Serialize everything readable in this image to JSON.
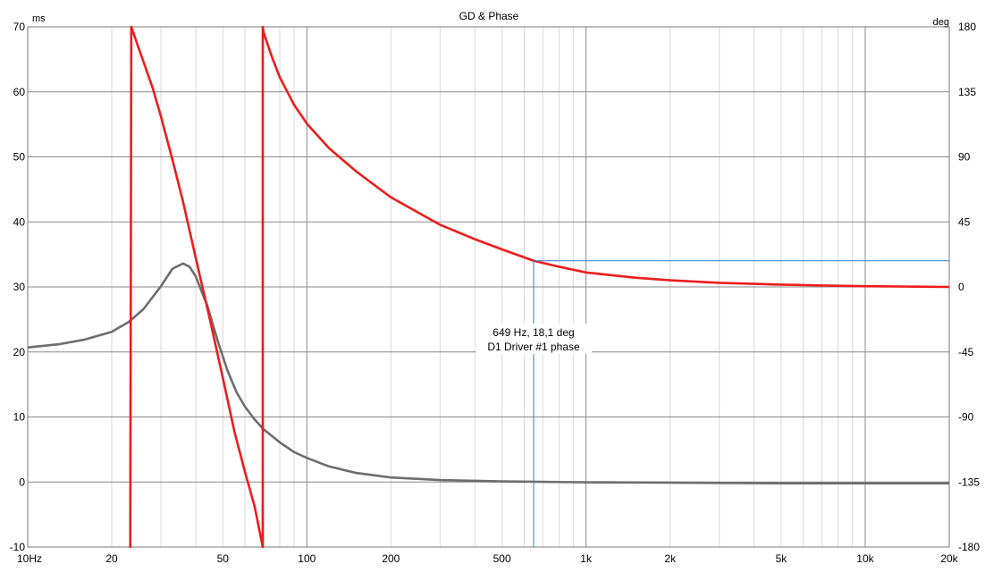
{
  "chart_data": {
    "type": "line",
    "title": "GD & Phase",
    "x_scale": "log",
    "xlim": [
      10,
      20000
    ],
    "x_ticks": [
      {
        "value": 10,
        "label": "10Hz"
      },
      {
        "value": 20,
        "label": "20"
      },
      {
        "value": 50,
        "label": "50"
      },
      {
        "value": 100,
        "label": "100"
      },
      {
        "value": 200,
        "label": "200"
      },
      {
        "value": 500,
        "label": "500"
      },
      {
        "value": 1000,
        "label": "1k"
      },
      {
        "value": 2000,
        "label": "2k"
      },
      {
        "value": 5000,
        "label": "5k"
      },
      {
        "value": 10000,
        "label": "10k"
      },
      {
        "value": 20000,
        "label": "20k"
      }
    ],
    "y_left": {
      "unit": "ms",
      "ylim": [
        -10,
        70
      ],
      "ticks": [
        70,
        60,
        50,
        40,
        30,
        20,
        10,
        0,
        -10
      ]
    },
    "y_right": {
      "unit": "deg",
      "ylim": [
        -180,
        180
      ],
      "ticks": [
        180,
        135,
        90,
        45,
        0,
        -45,
        -90,
        -135,
        -180
      ]
    },
    "grid": true,
    "series": [
      {
        "axis": "right",
        "color": "#ee1c1c",
        "x": [
          23.3,
          23.5,
          25,
          28,
          30,
          33,
          36,
          40,
          45,
          50,
          55,
          60,
          65,
          69.5,
          69.5,
          70,
          75,
          80,
          90,
          100,
          120,
          150,
          200,
          300,
          400,
          500,
          649,
          800,
          1000,
          1500,
          2000,
          3000,
          5000,
          7000,
          10000,
          15000,
          20000
        ],
        "y": [
          -180,
          180,
          165,
          138,
          118,
          88,
          59,
          20,
          -23,
          -63,
          -100,
          -128,
          -152,
          -180,
          180,
          176,
          159,
          145,
          126,
          113,
          96,
          80,
          62,
          43,
          33,
          26,
          18.1,
          14,
          10,
          6.4,
          4.6,
          2.8,
          1.6,
          1.0,
          0.5,
          0.2,
          0
        ]
      },
      {
        "axis": "left",
        "color": "#6d6d6d",
        "x": [
          10,
          13,
          16,
          20,
          23,
          26,
          30,
          33,
          36,
          38,
          40,
          44,
          48,
          52,
          56,
          60,
          65,
          70,
          80,
          90,
          100,
          120,
          150,
          200,
          300,
          500,
          1000,
          2000,
          5000,
          10000,
          20000
        ],
        "y": [
          20.7,
          21.2,
          21.9,
          23.1,
          24.6,
          26.6,
          30.1,
          32.8,
          33.6,
          33.1,
          31.6,
          27.1,
          21.6,
          17.1,
          13.8,
          11.6,
          9.6,
          8.1,
          6.1,
          4.6,
          3.7,
          2.4,
          1.4,
          0.7,
          0.3,
          0.1,
          -0.05,
          -0.1,
          -0.2,
          -0.2,
          -0.2
        ]
      }
    ],
    "cursor": {
      "x": 649,
      "y_deg": 18.1,
      "line1": "649 Hz, 18,1 deg",
      "line2": "D1 Driver #1 phase",
      "color": "#2a7fd4"
    }
  }
}
